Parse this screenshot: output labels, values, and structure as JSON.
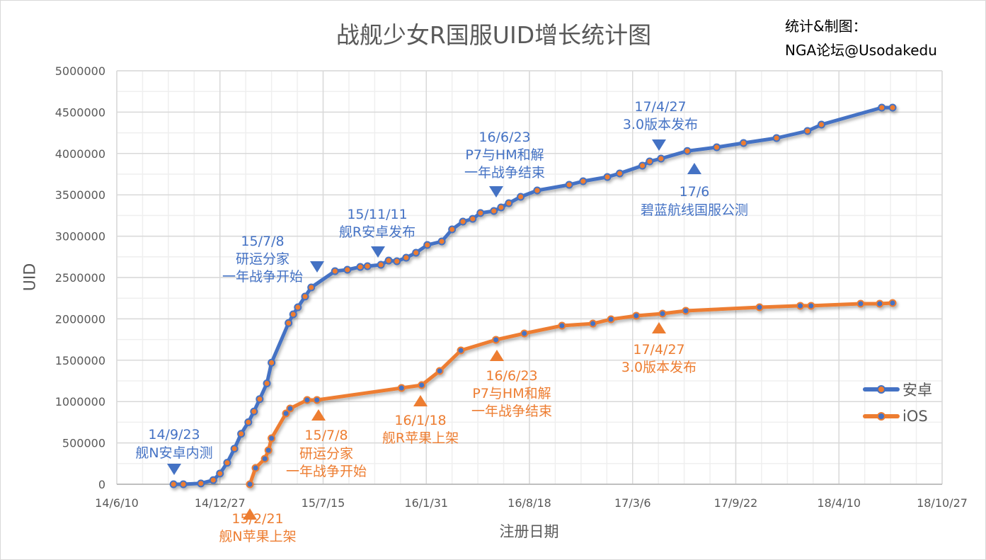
{
  "colors": {
    "android": "#4472C4",
    "ios": "#ED7D31",
    "grid": "#d9d9d9",
    "text": "#595959"
  },
  "credit": {
    "line1": "统计&制图：",
    "line2": "NGA论坛@Usodakedu"
  },
  "chart_data": {
    "type": "line",
    "title": "战舰少女R国服UID增长统计图",
    "xlabel": "注册日期",
    "ylabel": "UID",
    "xlim": [
      "2014-06-10",
      "2018-10-27"
    ],
    "ylim": [
      0,
      5000000
    ],
    "grid": true,
    "legend_position": "right",
    "x_ticks": [
      {
        "date": "2014-06-10",
        "label": "14/6/10"
      },
      {
        "date": "2014-12-27",
        "label": "14/12/27"
      },
      {
        "date": "2015-07-15",
        "label": "15/7/15"
      },
      {
        "date": "2016-01-31",
        "label": "16/1/31"
      },
      {
        "date": "2016-08-18",
        "label": "16/8/18"
      },
      {
        "date": "2017-03-06",
        "label": "17/3/6"
      },
      {
        "date": "2017-09-22",
        "label": "17/9/22"
      },
      {
        "date": "2018-04-10",
        "label": "18/4/10"
      },
      {
        "date": "2018-10-27",
        "label": "18/10/27"
      }
    ],
    "y_ticks": [
      "0",
      "500000",
      "1000000",
      "1500000",
      "2000000",
      "2500000",
      "3000000",
      "3500000",
      "4000000",
      "4500000",
      "5000000"
    ],
    "series": [
      {
        "name": "安卓",
        "color": "#4472C4",
        "marker_fill": "#ED7D31",
        "points": [
          [
            "2014-09-28",
            0
          ],
          [
            "2014-10-17",
            0
          ],
          [
            "2014-11-20",
            10000
          ],
          [
            "2014-12-14",
            50000
          ],
          [
            "2014-12-27",
            130000
          ],
          [
            "2015-01-10",
            260000
          ],
          [
            "2015-01-24",
            430000
          ],
          [
            "2015-02-06",
            610000
          ],
          [
            "2015-02-20",
            750000
          ],
          [
            "2015-03-03",
            880000
          ],
          [
            "2015-03-14",
            1030000
          ],
          [
            "2015-03-28",
            1220000
          ],
          [
            "2015-04-06",
            1470000
          ],
          [
            "2015-05-09",
            1950000
          ],
          [
            "2015-05-18",
            2055000
          ],
          [
            "2015-05-27",
            2140000
          ],
          [
            "2015-06-10",
            2270000
          ],
          [
            "2015-06-22",
            2380000
          ],
          [
            "2015-08-07",
            2577000
          ],
          [
            "2015-08-31",
            2594000
          ],
          [
            "2015-09-25",
            2628000
          ],
          [
            "2015-10-09",
            2637000
          ],
          [
            "2015-11-04",
            2654000
          ],
          [
            "2015-11-19",
            2705000
          ],
          [
            "2015-12-05",
            2697000
          ],
          [
            "2015-12-23",
            2740000
          ],
          [
            "2016-01-11",
            2800000
          ],
          [
            "2016-02-02",
            2894000
          ],
          [
            "2016-03-01",
            2937000
          ],
          [
            "2016-03-21",
            3082000
          ],
          [
            "2016-04-11",
            3176000
          ],
          [
            "2016-04-30",
            3210000
          ],
          [
            "2016-05-15",
            3280000
          ],
          [
            "2016-06-10",
            3305000
          ],
          [
            "2016-06-24",
            3348000
          ],
          [
            "2016-07-09",
            3399000
          ],
          [
            "2016-08-01",
            3476000
          ],
          [
            "2016-09-02",
            3553000
          ],
          [
            "2016-11-03",
            3622000
          ],
          [
            "2016-11-30",
            3664000
          ],
          [
            "2017-01-16",
            3716000
          ],
          [
            "2017-02-09",
            3759000
          ],
          [
            "2017-03-25",
            3853000
          ],
          [
            "2017-04-08",
            3904000
          ],
          [
            "2017-04-30",
            3938000
          ],
          [
            "2017-06-20",
            4030000
          ],
          [
            "2017-08-16",
            4075000
          ],
          [
            "2017-10-07",
            4127000
          ],
          [
            "2017-12-10",
            4187000
          ],
          [
            "2018-02-08",
            4272000
          ],
          [
            "2018-03-07",
            4349000
          ],
          [
            "2018-07-02",
            4555000
          ],
          [
            "2018-07-23",
            4555000
          ]
        ]
      },
      {
        "name": "iOS",
        "color": "#ED7D31",
        "marker_fill": "#4472C4",
        "points": [
          [
            "2015-02-23",
            0
          ],
          [
            "2015-03-06",
            197000
          ],
          [
            "2015-03-24",
            308000
          ],
          [
            "2015-03-31",
            411000
          ],
          [
            "2015-04-06",
            556000
          ],
          [
            "2015-05-04",
            856000
          ],
          [
            "2015-05-12",
            916000
          ],
          [
            "2015-06-14",
            1019000
          ],
          [
            "2015-07-03",
            1019000
          ],
          [
            "2015-12-14",
            1164000
          ],
          [
            "2016-01-22",
            1199000
          ],
          [
            "2016-02-26",
            1370000
          ],
          [
            "2016-04-07",
            1618000
          ],
          [
            "2016-06-14",
            1747000
          ],
          [
            "2016-08-08",
            1824000
          ],
          [
            "2016-10-20",
            1918000
          ],
          [
            "2016-12-19",
            1943000
          ],
          [
            "2017-01-23",
            1995000
          ],
          [
            "2017-03-13",
            2038000
          ],
          [
            "2017-05-03",
            2063000
          ],
          [
            "2017-06-17",
            2098000
          ],
          [
            "2017-11-07",
            2140000
          ],
          [
            "2018-01-25",
            2158000
          ],
          [
            "2018-02-15",
            2158000
          ],
          [
            "2018-05-22",
            2183000
          ],
          [
            "2018-06-28",
            2183000
          ],
          [
            "2018-07-23",
            2192000
          ]
        ]
      }
    ],
    "annotations": [
      {
        "series": "安卓",
        "lines": [
          "14/9/23",
          "舰N安卓内测"
        ]
      },
      {
        "series": "安卓",
        "lines": [
          "15/7/8",
          "研运分家",
          "一年战争开始"
        ]
      },
      {
        "series": "安卓",
        "lines": [
          "15/11/11",
          "舰R安卓发布"
        ]
      },
      {
        "series": "安卓",
        "lines": [
          "16/6/23",
          "P7与HM和解",
          "一年战争结束"
        ]
      },
      {
        "series": "安卓",
        "lines": [
          "17/4/27",
          "3.0版本发布"
        ]
      },
      {
        "series": "安卓",
        "lines": [
          "17/6",
          "碧蓝航线国服公测"
        ]
      },
      {
        "series": "iOS",
        "lines": [
          "15/2/21",
          "舰N苹果上架"
        ]
      },
      {
        "series": "iOS",
        "lines": [
          "15/7/8",
          "研运分家",
          "一年战争开始"
        ]
      },
      {
        "series": "iOS",
        "lines": [
          "16/1/18",
          "舰R苹果上架"
        ]
      },
      {
        "series": "iOS",
        "lines": [
          "16/6/23",
          "P7与HM和解",
          "一年战争结束"
        ]
      },
      {
        "series": "iOS",
        "lines": [
          "17/4/27",
          "3.0版本发布"
        ]
      }
    ]
  }
}
